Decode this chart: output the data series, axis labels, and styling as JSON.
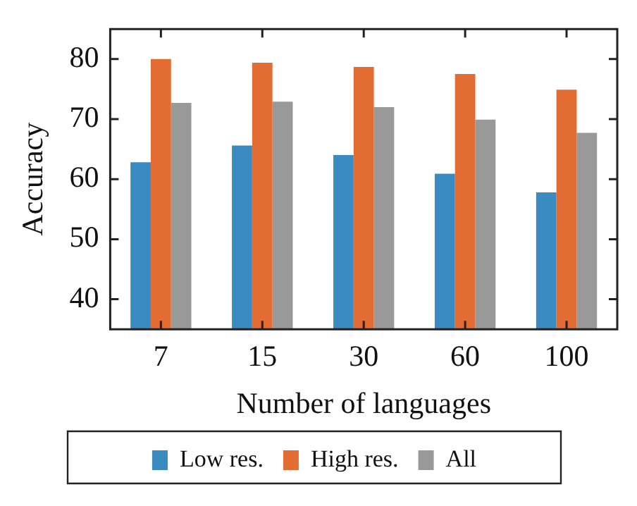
{
  "chart_data": {
    "type": "bar",
    "xlabel": "Number of languages",
    "ylabel": "Accuracy",
    "categories": [
      "7",
      "15",
      "30",
      "60",
      "100"
    ],
    "series": [
      {
        "name": "Low res.",
        "color": "#3a8bc2",
        "values": [
          62.8,
          65.6,
          64.0,
          60.9,
          57.8
        ]
      },
      {
        "name": "High res.",
        "color": "#e36c33",
        "values": [
          80.0,
          79.4,
          78.7,
          77.5,
          74.9
        ]
      },
      {
        "name": "All",
        "color": "#999999",
        "values": [
          72.7,
          72.9,
          72.0,
          69.9,
          67.7
        ]
      }
    ],
    "ylim": [
      35,
      85
    ],
    "yticks": [
      40,
      50,
      60,
      70,
      80
    ],
    "grid": false,
    "legend": "bottom"
  }
}
